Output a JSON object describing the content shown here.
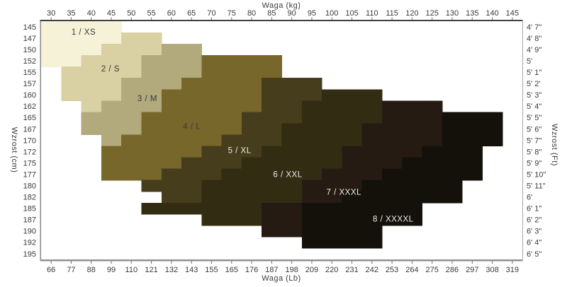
{
  "axis_titles": {
    "top": "Waga  (kg)",
    "bottom": "Waga  (Lb)",
    "left": "Wzrost  (cm)",
    "right": "Wzrost  (Ft)"
  },
  "chart_data": {
    "type": "heatmap",
    "description": "Stair-stepped clothing size chart: weight (kg top / lb bottom) vs height (cm left / ft right); 8 diagonal size regions from 1/XS (cream) to 8/XXXXL (black)",
    "grid": {
      "cols": 24,
      "rows": 21,
      "kg_range": [
        27.5,
        147.5
      ],
      "cm_range": [
        143.75,
        196.25
      ]
    },
    "axes": {
      "top": {
        "ticks": [
          "30",
          "35",
          "40",
          "45",
          "50",
          "55",
          "60",
          "65",
          "70",
          "75",
          "80",
          "85",
          "90",
          "95",
          "100",
          "105",
          "110",
          "115",
          "120",
          "125",
          "130",
          "135",
          "140",
          "145"
        ]
      },
      "bottom": {
        "ticks": [
          "66",
          "77",
          "88",
          "99",
          "110",
          "121",
          "132",
          "143",
          "155",
          "165",
          "176",
          "187",
          "198",
          "209",
          "220",
          "231",
          "242",
          "253",
          "264",
          "275",
          "286",
          "297",
          "308",
          "319"
        ]
      },
      "left": {
        "ticks": [
          "145",
          "147",
          "150",
          "152",
          "155",
          "157",
          "160",
          "162",
          "165",
          "167",
          "170",
          "172",
          "175",
          "177",
          "180",
          "182",
          "185",
          "187",
          "190",
          "192",
          "195"
        ]
      },
      "right": {
        "ticks": [
          "4'  7\"",
          "4'  8\"",
          "4'  9\"",
          "5'",
          "5'  1\"",
          "5'  2'",
          "5'  3\"",
          "5'  4\"",
          "5'  5\"",
          "5'  6\"",
          "5'  7\"",
          "5'  8\"",
          "5'  9\"",
          "5'  10\"",
          "5'  11\"",
          "6'",
          "6'  1\"",
          "6'  2\"",
          "6'  3\"",
          "6'  4\"",
          "6'  5\""
        ]
      }
    },
    "tick_color": "#3a3a3a",
    "spine_colors": {
      "top": "#3f3f3f",
      "left": "#8a8a8a",
      "bottom": "#8f8f8f",
      "right": "#a8a8a8"
    },
    "sizes": [
      {
        "id": 1,
        "label": "1  /  XS",
        "color": "#f6f2d8",
        "label_color": "#3a3a3a",
        "label_kg": 38.1,
        "label_cm": 146.1,
        "cells": [
          [
            0,
            0,
            4
          ],
          [
            1,
            0,
            4
          ],
          [
            2,
            0,
            3
          ],
          [
            3,
            0,
            2
          ]
        ]
      },
      {
        "id": 2,
        "label": "2  /  S",
        "color": "#d9d0a4",
        "label_color": "#3a3a3a",
        "label_kg": 44.8,
        "label_cm": 154.2,
        "cells": [
          [
            1,
            4,
            6
          ],
          [
            2,
            3,
            6
          ],
          [
            3,
            2,
            5
          ],
          [
            4,
            1,
            5
          ],
          [
            5,
            1,
            4
          ],
          [
            6,
            1,
            4
          ],
          [
            7,
            2,
            3
          ]
        ]
      },
      {
        "id": 3,
        "label": "3  /  M",
        "color": "#b2a97c",
        "label_color": "#3a3a3a",
        "label_kg": 54.0,
        "label_cm": 160.7,
        "cells": [
          [
            2,
            6,
            8
          ],
          [
            3,
            5,
            8
          ],
          [
            4,
            5,
            8
          ],
          [
            5,
            4,
            7
          ],
          [
            6,
            4,
            6
          ],
          [
            7,
            3,
            6
          ],
          [
            8,
            2,
            5
          ],
          [
            9,
            2,
            5
          ],
          [
            10,
            3,
            4
          ]
        ]
      },
      {
        "id": 4,
        "label": "4  /  L",
        "color": "#77672a",
        "label_color": "#3a3a3a",
        "label_kg": 65.1,
        "label_cm": 166.9,
        "cells": [
          [
            3,
            8,
            12
          ],
          [
            4,
            8,
            12
          ],
          [
            5,
            7,
            11
          ],
          [
            6,
            6,
            11
          ],
          [
            7,
            6,
            11
          ],
          [
            8,
            5,
            10
          ],
          [
            9,
            5,
            10
          ],
          [
            10,
            4,
            9
          ],
          [
            11,
            3,
            8
          ],
          [
            12,
            3,
            7
          ],
          [
            13,
            3,
            6
          ]
        ]
      },
      {
        "id": 5,
        "label": "5  /  XL",
        "color": "#463d1d",
        "label_color": "#ececec",
        "label_kg": 77.0,
        "label_cm": 172.2,
        "cells": [
          [
            5,
            11,
            14
          ],
          [
            6,
            11,
            14
          ],
          [
            7,
            11,
            13
          ],
          [
            8,
            10,
            13
          ],
          [
            9,
            10,
            12
          ],
          [
            10,
            9,
            12
          ],
          [
            11,
            8,
            11
          ],
          [
            12,
            7,
            10
          ],
          [
            13,
            6,
            9
          ],
          [
            14,
            5,
            8
          ],
          [
            15,
            6,
            8
          ]
        ]
      },
      {
        "id": 6,
        "label": "6  /  XXL",
        "color": "#322c13",
        "label_color": "#ececec",
        "label_kg": 89.0,
        "label_cm": 177.5,
        "cells": [
          [
            6,
            14,
            17
          ],
          [
            7,
            13,
            17
          ],
          [
            8,
            13,
            17
          ],
          [
            9,
            12,
            16
          ],
          [
            10,
            12,
            16
          ],
          [
            11,
            11,
            15
          ],
          [
            12,
            10,
            15
          ],
          [
            13,
            9,
            14
          ],
          [
            14,
            8,
            13
          ],
          [
            15,
            8,
            13
          ],
          [
            16,
            5,
            11
          ],
          [
            17,
            8,
            11
          ]
        ]
      },
      {
        "id": 7,
        "label": "7  /  XXXL",
        "color": "#251b13",
        "label_color": "#ececec",
        "label_kg": 103.0,
        "label_cm": 181.4,
        "cells": [
          [
            7,
            17,
            20
          ],
          [
            8,
            17,
            20
          ],
          [
            9,
            16,
            20
          ],
          [
            10,
            16,
            20
          ],
          [
            11,
            15,
            19
          ],
          [
            12,
            15,
            18
          ],
          [
            13,
            14,
            17
          ],
          [
            14,
            13,
            16
          ],
          [
            15,
            13,
            15
          ],
          [
            16,
            11,
            13
          ],
          [
            17,
            11,
            13
          ],
          [
            18,
            11,
            13
          ]
        ]
      },
      {
        "id": 8,
        "label": "8  /  XXXXL",
        "color": "#13110a",
        "label_color": "#ececec",
        "label_kg": 115.3,
        "label_cm": 187.3,
        "cells": [
          [
            8,
            20,
            23
          ],
          [
            9,
            20,
            23
          ],
          [
            10,
            20,
            23
          ],
          [
            11,
            19,
            22
          ],
          [
            12,
            18,
            22
          ],
          [
            13,
            17,
            22
          ],
          [
            14,
            16,
            21
          ],
          [
            15,
            15,
            21
          ],
          [
            16,
            13,
            19
          ],
          [
            17,
            13,
            19
          ],
          [
            18,
            13,
            17
          ],
          [
            19,
            13,
            17
          ]
        ]
      }
    ]
  }
}
